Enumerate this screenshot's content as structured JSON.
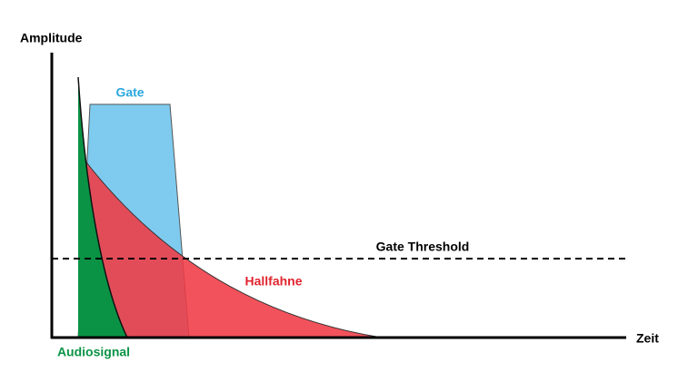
{
  "axes": {
    "y_label": "Amplitude",
    "x_label": "Zeit"
  },
  "labels": {
    "gate": "Gate",
    "threshold": "Gate Threshold",
    "reverb": "Hallfahne",
    "signal": "Audiosignal"
  }
}
